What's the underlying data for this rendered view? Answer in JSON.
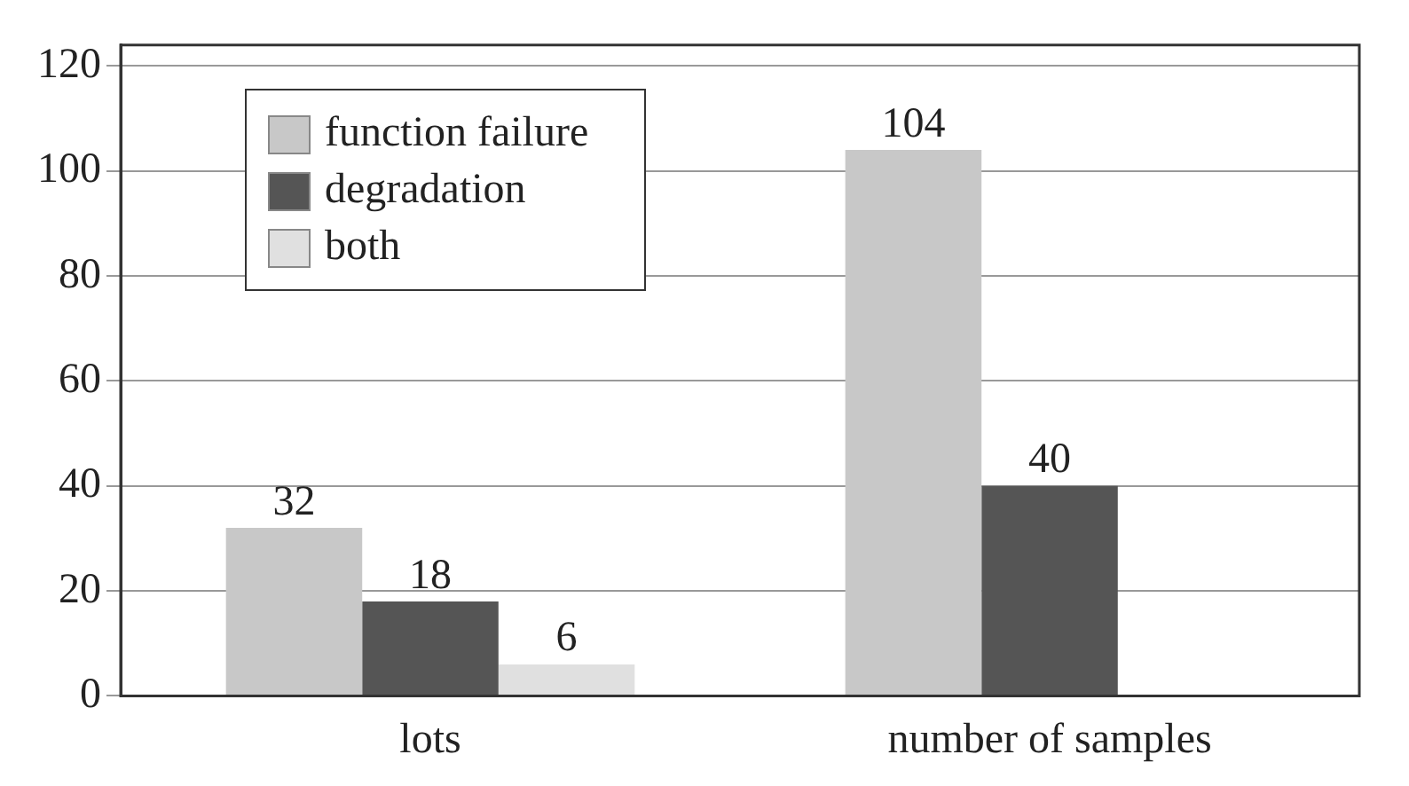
{
  "chart_data": {
    "type": "bar",
    "categories": [
      "lots",
      "number of samples"
    ],
    "series": [
      {
        "name": "function failure",
        "color": "#c8c8c8",
        "values": [
          32,
          104
        ]
      },
      {
        "name": "degradation",
        "color": "#555555",
        "values": [
          18,
          40
        ]
      },
      {
        "name": "both",
        "color": "#e0e0e0",
        "values": [
          6,
          null
        ]
      }
    ],
    "ylim": [
      0,
      124
    ],
    "yticks": [
      0,
      20,
      40,
      60,
      80,
      100,
      120
    ],
    "grid": "y",
    "legend": "top left",
    "data_labels": true
  }
}
